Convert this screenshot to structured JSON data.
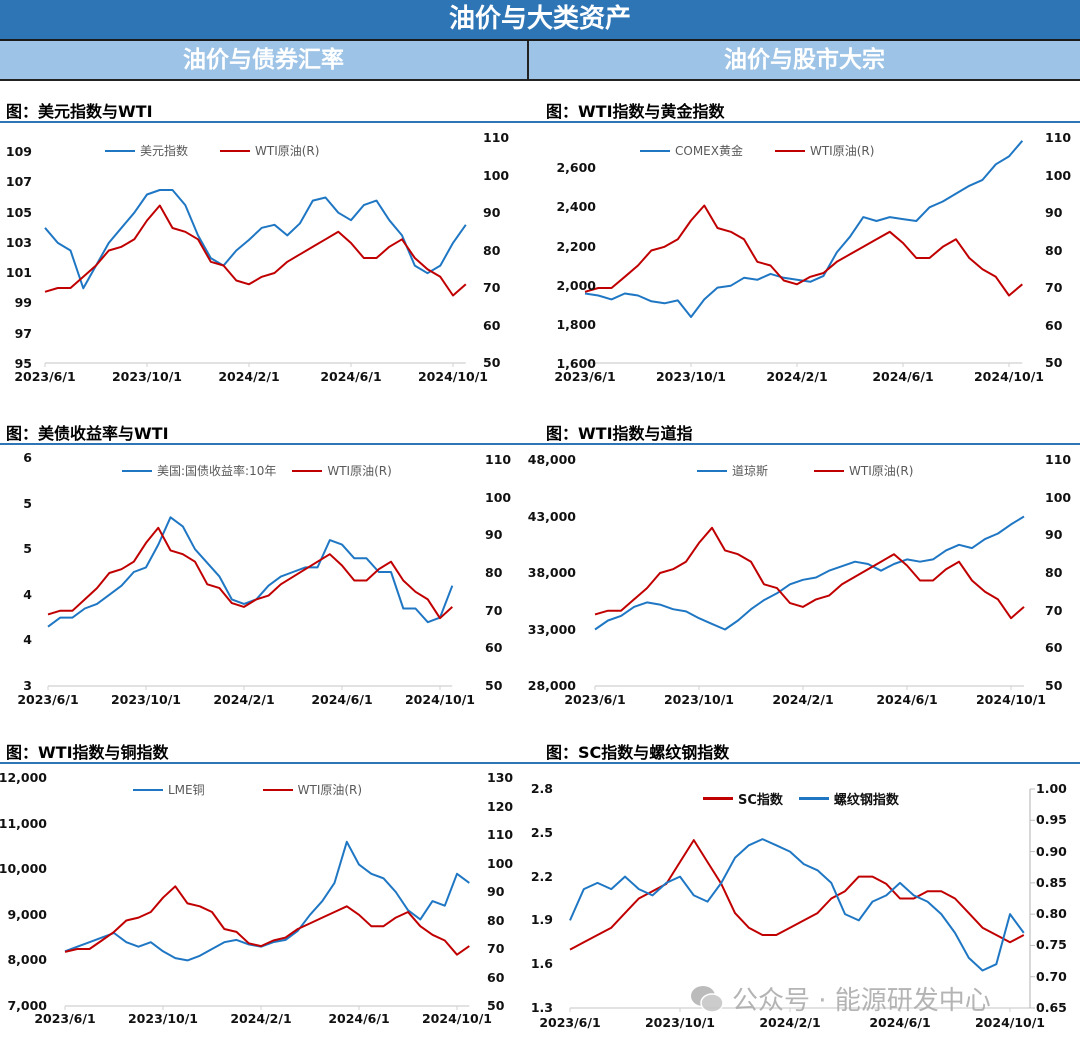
{
  "header": {
    "title": "油价与大类资产",
    "left_section": "油价与债券汇率",
    "right_section": "油价与股市大宗"
  },
  "watermark": "公众号 · 能源研发中心",
  "chart_data": [
    {
      "type": "line",
      "title": "图：美元指数与WTI",
      "x_start": "2023/6/1",
      "x_step_months": 0.5,
      "x_ticks": [
        {
          "month": 0,
          "label": "2023/6/1"
        },
        {
          "month": 4,
          "label": "2023/10/1"
        },
        {
          "month": 8,
          "label": "2024/2/1"
        },
        {
          "month": 12,
          "label": "2024/6/1"
        },
        {
          "month": 16,
          "label": "2024/10/1"
        }
      ],
      "left_axis": {
        "ylim": [
          95,
          110
        ],
        "tick_values": [
          95,
          97,
          99,
          101,
          103,
          105,
          107,
          109
        ],
        "tick_labels": [
          "95",
          "97",
          "99",
          "101",
          "103",
          "105",
          "107",
          "109"
        ]
      },
      "right_axis": {
        "ylim": [
          50,
          110
        ],
        "tick_values": [
          50,
          60,
          70,
          80,
          90,
          100,
          110
        ],
        "tick_labels": [
          "50",
          "60",
          "70",
          "80",
          "90",
          "100",
          "110"
        ]
      },
      "legend": "top-center",
      "series": [
        {
          "name": "美元指数",
          "axis": "left",
          "color": "#1F77C4",
          "values": [
            104,
            103,
            102.5,
            100,
            101.5,
            103,
            104,
            105,
            106.2,
            106.5,
            106.5,
            105.5,
            103.5,
            102,
            101.5,
            102.5,
            103.2,
            104,
            104.2,
            103.5,
            104.3,
            105.8,
            106,
            105,
            104.5,
            105.5,
            105.8,
            104.5,
            103.5,
            101.5,
            101,
            101.5,
            103,
            104.2
          ]
        },
        {
          "name": "WTI原油(R)",
          "axis": "right",
          "color": "#C00000",
          "values": [
            69,
            70,
            70,
            73,
            76,
            80,
            81,
            83,
            88,
            92,
            86,
            85,
            83,
            77,
            76,
            72,
            71,
            73,
            74,
            77,
            79,
            81,
            83,
            85,
            82,
            78,
            78,
            81,
            83,
            78,
            75,
            73,
            68,
            71
          ]
        }
      ]
    },
    {
      "type": "line",
      "title": "图：WTI指数与黄金指数",
      "x_start": "2023/6/1",
      "x_step_months": 0.5,
      "x_ticks": [
        {
          "month": 0,
          "label": "2023/6/1"
        },
        {
          "month": 4,
          "label": "2023/10/1"
        },
        {
          "month": 8,
          "label": "2024/2/1"
        },
        {
          "month": 12,
          "label": "2024/6/1"
        },
        {
          "month": 16,
          "label": "2024/10/1"
        }
      ],
      "left_axis": {
        "ylim": [
          1600,
          2800
        ],
        "tick_values": [
          1600,
          1800,
          2000,
          2200,
          2400,
          2600
        ],
        "tick_labels": [
          "1,600",
          "1,800",
          "2,000",
          "2,200",
          "2,400",
          "2,600"
        ]
      },
      "right_axis": {
        "ylim": [
          50,
          110
        ],
        "tick_values": [
          50,
          60,
          70,
          80,
          90,
          100,
          110
        ],
        "tick_labels": [
          "50",
          "60",
          "70",
          "80",
          "90",
          "100",
          "110"
        ]
      },
      "legend": "top-center",
      "series": [
        {
          "name": "COMEX黄金",
          "axis": "left",
          "color": "#1F77C4",
          "values": [
            1960,
            1950,
            1930,
            1960,
            1950,
            1920,
            1910,
            1925,
            1840,
            1930,
            1990,
            2000,
            2040,
            2030,
            2060,
            2040,
            2030,
            2020,
            2050,
            2170,
            2250,
            2350,
            2330,
            2350,
            2340,
            2330,
            2400,
            2430,
            2470,
            2510,
            2540,
            2620,
            2660,
            2740
          ]
        },
        {
          "name": "WTI原油(R)",
          "axis": "right",
          "color": "#C00000",
          "values": [
            69,
            70,
            70,
            73,
            76,
            80,
            81,
            83,
            88,
            92,
            86,
            85,
            83,
            77,
            76,
            72,
            71,
            73,
            74,
            77,
            79,
            81,
            83,
            85,
            82,
            78,
            78,
            81,
            83,
            78,
            75,
            73,
            68,
            71
          ]
        }
      ]
    },
    {
      "type": "line",
      "title": "图：美债收益率与WTI",
      "x_start": "2023/6/1",
      "x_step_months": 0.5,
      "x_ticks": [
        {
          "month": 0,
          "label": "2023/6/1"
        },
        {
          "month": 4,
          "label": "2023/10/1"
        },
        {
          "month": 8,
          "label": "2024/2/1"
        },
        {
          "month": 12,
          "label": "2024/6/1"
        },
        {
          "month": 16,
          "label": "2024/10/1"
        }
      ],
      "left_axis": {
        "ylim": [
          3,
          5.5
        ],
        "tick_values": [
          3,
          3.5,
          4,
          4.5,
          5,
          5.5
        ],
        "tick_labels": [
          "3",
          "4",
          "4",
          "5",
          "5",
          "6"
        ]
      },
      "right_axis": {
        "ylim": [
          50,
          110
        ],
        "tick_values": [
          50,
          60,
          70,
          80,
          90,
          100,
          110
        ],
        "tick_labels": [
          "50",
          "60",
          "70",
          "80",
          "90",
          "100",
          "110"
        ]
      },
      "legend": "top-center",
      "series": [
        {
          "name": "美国:国债收益率:10年",
          "axis": "left",
          "color": "#1F77C4",
          "values": [
            3.65,
            3.75,
            3.75,
            3.85,
            3.9,
            4.0,
            4.1,
            4.25,
            4.3,
            4.55,
            4.85,
            4.75,
            4.5,
            4.35,
            4.2,
            3.95,
            3.9,
            3.95,
            4.1,
            4.2,
            4.25,
            4.3,
            4.3,
            4.6,
            4.55,
            4.4,
            4.4,
            4.25,
            4.25,
            3.85,
            3.85,
            3.7,
            3.75,
            4.1
          ]
        },
        {
          "name": "WTI原油(R)",
          "axis": "right",
          "color": "#C00000",
          "values": [
            69,
            70,
            70,
            73,
            76,
            80,
            81,
            83,
            88,
            92,
            86,
            85,
            83,
            77,
            76,
            72,
            71,
            73,
            74,
            77,
            79,
            81,
            83,
            85,
            82,
            78,
            78,
            81,
            83,
            78,
            75,
            73,
            68,
            71
          ]
        }
      ]
    },
    {
      "type": "line",
      "title": "图：WTI指数与道指",
      "x_start": "2023/6/1",
      "x_step_months": 0.5,
      "x_ticks": [
        {
          "month": 0,
          "label": "2023/6/1"
        },
        {
          "month": 4,
          "label": "2023/10/1"
        },
        {
          "month": 8,
          "label": "2024/2/1"
        },
        {
          "month": 12,
          "label": "2024/6/1"
        },
        {
          "month": 16,
          "label": "2024/10/1"
        }
      ],
      "left_axis": {
        "ylim": [
          28000,
          48000
        ],
        "tick_values": [
          28000,
          33000,
          38000,
          43000,
          48000
        ],
        "tick_labels": [
          "28,000",
          "33,000",
          "38,000",
          "43,000",
          "48,000"
        ]
      },
      "right_axis": {
        "ylim": [
          50,
          110
        ],
        "tick_values": [
          50,
          60,
          70,
          80,
          90,
          100,
          110
        ],
        "tick_labels": [
          "50",
          "60",
          "70",
          "80",
          "90",
          "100",
          "110"
        ]
      },
      "legend": "top-center",
      "series": [
        {
          "name": "道琼斯",
          "axis": "left",
          "color": "#1F77C4",
          "values": [
            33000,
            33800,
            34200,
            35000,
            35400,
            35200,
            34800,
            34600,
            34000,
            33500,
            33000,
            33800,
            34800,
            35600,
            36200,
            37000,
            37400,
            37600,
            38200,
            38600,
            39000,
            38800,
            38200,
            38800,
            39200,
            39000,
            39200,
            40000,
            40500,
            40200,
            41000,
            41500,
            42300,
            43000
          ]
        },
        {
          "name": "WTI原油(R)",
          "axis": "right",
          "color": "#C00000",
          "values": [
            69,
            70,
            70,
            73,
            76,
            80,
            81,
            83,
            88,
            92,
            86,
            85,
            83,
            77,
            76,
            72,
            71,
            73,
            74,
            77,
            79,
            81,
            83,
            85,
            82,
            78,
            78,
            81,
            83,
            78,
            75,
            73,
            68,
            71
          ]
        }
      ]
    },
    {
      "type": "line",
      "title": "图：WTI指数与铜指数",
      "x_start": "2023/6/1",
      "x_step_months": 0.5,
      "x_ticks": [
        {
          "month": 0,
          "label": "2023/6/1"
        },
        {
          "month": 4,
          "label": "2023/10/1"
        },
        {
          "month": 8,
          "label": "2024/2/1"
        },
        {
          "month": 12,
          "label": "2024/6/1"
        },
        {
          "month": 16,
          "label": "2024/10/1"
        }
      ],
      "left_axis": {
        "ylim": [
          7000,
          12000
        ],
        "tick_values": [
          7000,
          8000,
          9000,
          10000,
          11000,
          12000
        ],
        "tick_labels": [
          "7,000",
          "8,000",
          "9,000",
          "10,000",
          "11,000",
          "12,000"
        ]
      },
      "right_axis": {
        "ylim": [
          50,
          130
        ],
        "tick_values": [
          50,
          60,
          70,
          80,
          90,
          100,
          110,
          120,
          130
        ],
        "tick_labels": [
          "50",
          "60",
          "70",
          "80",
          "90",
          "100",
          "110",
          "120",
          "130"
        ]
      },
      "legend": "top-center",
      "series": [
        {
          "name": "LME铜",
          "axis": "left",
          "color": "#1F77C4",
          "values": [
            8200,
            8300,
            8400,
            8500,
            8600,
            8400,
            8300,
            8400,
            8200,
            8050,
            8000,
            8100,
            8250,
            8400,
            8450,
            8350,
            8300,
            8400,
            8450,
            8650,
            9000,
            9300,
            9700,
            10600,
            10100,
            9900,
            9800,
            9500,
            9100,
            8900,
            9300,
            9200,
            9900,
            9700
          ]
        },
        {
          "name": "WTI原油(R)",
          "axis": "right",
          "color": "#C00000",
          "values": [
            69,
            70,
            70,
            73,
            76,
            80,
            81,
            83,
            88,
            92,
            86,
            85,
            83,
            77,
            76,
            72,
            71,
            73,
            74,
            77,
            79,
            81,
            83,
            85,
            82,
            78,
            78,
            81,
            83,
            78,
            75,
            73,
            68,
            71
          ]
        }
      ]
    },
    {
      "type": "line",
      "title": "图：SC指数与螺纹钢指数",
      "x_start": "2023/6/1",
      "x_step_months": 0.5,
      "x_ticks": [
        {
          "month": 0,
          "label": "2023/6/1"
        },
        {
          "month": 4,
          "label": "2023/10/1"
        },
        {
          "month": 8,
          "label": "2024/2/1"
        },
        {
          "month": 12,
          "label": "2024/6/1"
        },
        {
          "month": 16,
          "label": "2024/10/1"
        }
      ],
      "left_axis": {
        "ylim": [
          1.3,
          2.8
        ],
        "tick_values": [
          1.3,
          1.6,
          1.9,
          2.2,
          2.5,
          2.8
        ],
        "tick_labels": [
          "1.3",
          "1.6",
          "1.9",
          "2.2",
          "2.5",
          "2.8"
        ]
      },
      "right_axis": {
        "ylim": [
          0.65,
          1.0
        ],
        "tick_values": [
          0.65,
          0.7,
          0.75,
          0.8,
          0.85,
          0.9,
          0.95,
          1.0
        ],
        "tick_labels": [
          "0.65",
          "0.70",
          "0.75",
          "0.80",
          "0.85",
          "0.90",
          "0.95",
          "1.00"
        ]
      },
      "legend": "top-center",
      "series": [
        {
          "name": "SC指数",
          "axis": "left",
          "color": "#C00000",
          "values": [
            1.7,
            1.75,
            1.8,
            1.85,
            1.95,
            2.05,
            2.1,
            2.15,
            2.3,
            2.45,
            2.3,
            2.15,
            1.95,
            1.85,
            1.8,
            1.8,
            1.85,
            1.9,
            1.95,
            2.05,
            2.1,
            2.2,
            2.2,
            2.15,
            2.05,
            2.05,
            2.1,
            2.1,
            2.05,
            1.95,
            1.85,
            1.8,
            1.75,
            1.8
          ]
        },
        {
          "name": "螺纹钢指数",
          "axis": "right",
          "color": "#1F77C4",
          "values": [
            0.79,
            0.84,
            0.85,
            0.84,
            0.86,
            0.84,
            0.83,
            0.85,
            0.86,
            0.83,
            0.82,
            0.85,
            0.89,
            0.91,
            0.92,
            0.91,
            0.9,
            0.88,
            0.87,
            0.85,
            0.8,
            0.79,
            0.82,
            0.83,
            0.85,
            0.83,
            0.82,
            0.8,
            0.77,
            0.73,
            0.71,
            0.72,
            0.8,
            0.77
          ]
        }
      ]
    }
  ]
}
